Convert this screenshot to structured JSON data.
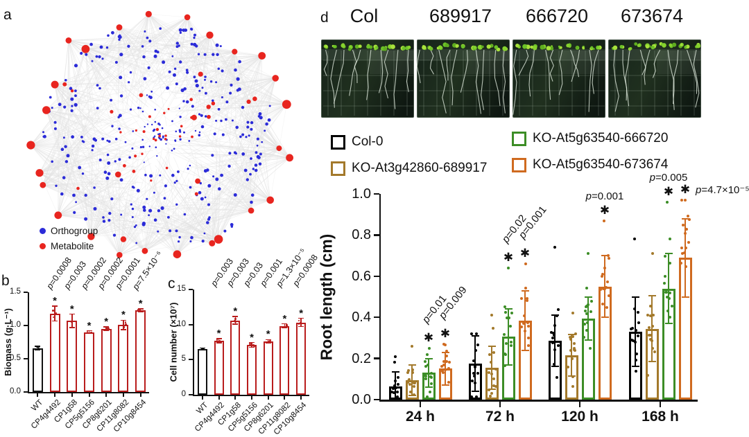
{
  "panels": {
    "a": "a",
    "b": "b",
    "c": "c",
    "d": "d"
  },
  "panel_a": {
    "legend": [
      {
        "label": "Orthogroup",
        "color": "#2B2BD8"
      },
      {
        "label": "Metabolite",
        "color": "#E8251F"
      }
    ],
    "network": {
      "blue_color": "#2B2BD8",
      "red_color": "#E8251F",
      "edge_color": "#E3E3E3",
      "outer_red_nodes": 26,
      "inner_red_nodes": 40,
      "blue_nodes": 335
    }
  },
  "panel_d": {
    "plate_labels": [
      "Col",
      "689917",
      "666720",
      "673674"
    ],
    "legend": [
      {
        "label": "Col-0",
        "color": "#000000"
      },
      {
        "label": "KO-At3g42860-689917",
        "color": "#A3792B"
      },
      {
        "label": "KO-At5g63540-666720",
        "color": "#3C8D26"
      },
      {
        "label": "KO-At5g63540-673674",
        "color": "#CF6A1F"
      }
    ]
  },
  "chart_data": [
    {
      "id": "panel-b-chart",
      "type": "bar",
      "ylabel": "Biomass (g·L⁻¹)",
      "categories": [
        "WT",
        "CP4g4492",
        "CP1g58",
        "CP5g5156",
        "CP8g6201",
        "CP11g8082",
        "CP10g8454"
      ],
      "values": [
        0.66,
        1.18,
        1.07,
        0.9,
        0.95,
        1.01,
        1.23
      ],
      "errors": [
        0.03,
        0.11,
        0.1,
        0.02,
        0.03,
        0.07,
        0.02
      ],
      "bar_colors": [
        "#111111",
        "#B91C1C",
        "#B91C1C",
        "#B91C1C",
        "#B91C1C",
        "#B91C1C",
        "#B91C1C"
      ],
      "significance": [
        false,
        true,
        true,
        true,
        true,
        true,
        true
      ],
      "pvalues": [
        null,
        "p=0.0008",
        "p=0.003",
        "p=0.0002",
        "p=0.0002",
        "p=0.0001",
        "p=7.5×10⁻⁶"
      ],
      "yticks": [
        0,
        0.5,
        1.0,
        1.5
      ],
      "ytick_labels": [
        "0.0",
        "0.5",
        "1.0",
        "1.5"
      ],
      "ymax": 1.5
    },
    {
      "id": "panel-c-chart",
      "type": "bar",
      "ylabel": "Cell number (×10⁷)",
      "categories": [
        "WT",
        "CP4g4492",
        "CP1g58",
        "CP5g5156",
        "CP8g6201",
        "CP11g8082",
        "CP10g8454"
      ],
      "values": [
        6.5,
        7.7,
        10.6,
        7.1,
        7.6,
        9.8,
        10.3
      ],
      "errors": [
        0.15,
        0.3,
        0.55,
        0.35,
        0.25,
        0.3,
        0.6
      ],
      "bar_colors": [
        "#111111",
        "#B91C1C",
        "#B91C1C",
        "#B91C1C",
        "#B91C1C",
        "#B91C1C",
        "#B91C1C"
      ],
      "significance": [
        false,
        true,
        true,
        true,
        true,
        true,
        true
      ],
      "pvalues": [
        null,
        "p=0.003",
        "p=0.003",
        "p=0.03",
        "p=0.001",
        "p=1.3×10⁻⁵",
        "p=0.0008"
      ],
      "yticks": [
        0,
        5,
        10,
        15
      ],
      "ytick_labels": [
        "0",
        "5",
        "10",
        "15"
      ],
      "ymax": 15
    },
    {
      "id": "root-length-chart",
      "type": "grouped_bar",
      "ylabel": "Root length (cm)",
      "groups": [
        "24 h",
        "72 h",
        "120 h",
        "168 h"
      ],
      "series": [
        {
          "name": "Col-0",
          "color": "#000000",
          "values": [
            0.065,
            0.175,
            0.285,
            0.33
          ],
          "errors": [
            0.07,
            0.135,
            0.125,
            0.17
          ],
          "dotmax": [
            0.21,
            0.32,
            0.74,
            0.78
          ]
        },
        {
          "name": "KO-At3g42860-689917",
          "color": "#A3792B",
          "values": [
            0.095,
            0.155,
            0.215,
            0.345
          ],
          "errors": [
            0.075,
            0.105,
            0.1,
            0.16
          ],
          "dotmax": [
            0.26,
            0.41,
            0.42,
            0.71
          ]
        },
        {
          "name": "KO-At5g63540-666720",
          "color": "#3C8D26",
          "values": [
            0.13,
            0.305,
            0.395,
            0.54
          ],
          "errors": [
            0.07,
            0.135,
            0.105,
            0.17
          ],
          "dotmax": [
            0.25,
            0.64,
            0.71,
            0.96
          ]
        },
        {
          "name": "KO-At5g63540-673674",
          "color": "#CF6A1F",
          "values": [
            0.15,
            0.385,
            0.55,
            0.69
          ],
          "errors": [
            0.08,
            0.145,
            0.15,
            0.19
          ],
          "dotmax": [
            0.27,
            0.66,
            0.87,
            0.97
          ]
        }
      ],
      "stars": [
        {
          "group": 0,
          "bars": [
            2,
            3
          ]
        },
        {
          "group": 1,
          "bars": [
            2,
            3
          ]
        },
        {
          "group": 2,
          "bars": [
            3
          ]
        },
        {
          "group": 3,
          "bars": [
            2,
            3
          ]
        }
      ],
      "annotations": [
        {
          "group": 0,
          "bar": 2,
          "label": "p=0.01",
          "mode": "rot"
        },
        {
          "group": 0,
          "bar": 3,
          "label": "p=0.009",
          "mode": "rot"
        },
        {
          "group": 1,
          "bar": 2,
          "label": "p=0.02",
          "mode": "rot"
        },
        {
          "group": 1,
          "bar": 3,
          "label": "p=0.001",
          "mode": "rot"
        },
        {
          "group": 2,
          "bar": 3,
          "label": "p=0.001",
          "mode": "above"
        },
        {
          "group": 3,
          "bar": 2,
          "label": "p=0.005",
          "mode": "above"
        },
        {
          "group": 3,
          "bar": 3,
          "label": "p=4.7×10⁻⁵",
          "mode": "right"
        }
      ],
      "yticks": [
        0,
        0.2,
        0.4,
        0.6,
        0.8,
        1.0
      ],
      "ytick_labels": [
        "0.0",
        "0.2",
        "0.4",
        "0.6",
        "0.8",
        "1.0"
      ],
      "ymax": 1.0
    }
  ]
}
